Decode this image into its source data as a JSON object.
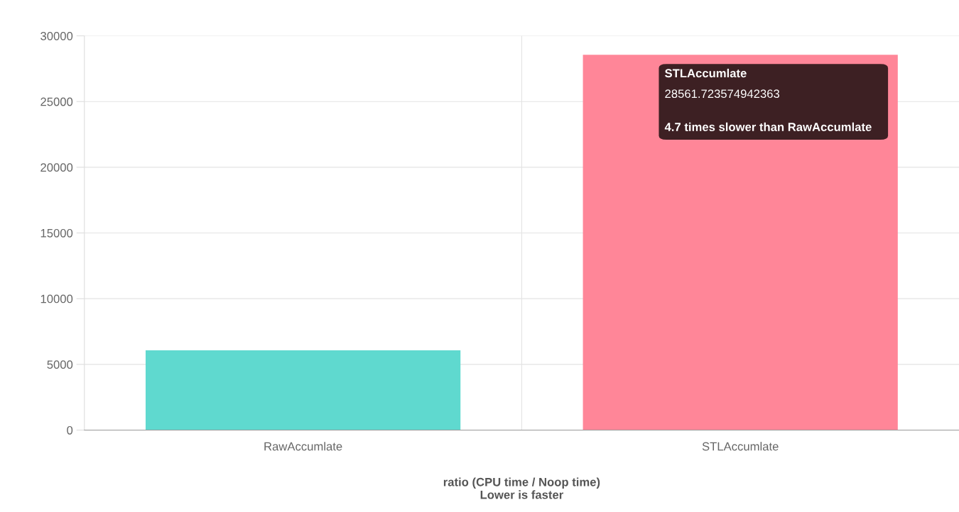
{
  "chart_data": {
    "type": "bar",
    "categories": [
      "RawAccumlate",
      "STLAccumlate"
    ],
    "values": [
      6070,
      28561.723574942363
    ],
    "colors": [
      "#5fd9cf",
      "#ff8698"
    ],
    "xlabel": "ratio (CPU time / Noop time)\nLower is faster",
    "ylim": [
      0,
      30000
    ],
    "yticks": [
      0,
      5000,
      10000,
      15000,
      20000,
      25000,
      30000
    ],
    "grid": true,
    "legend": false,
    "annotations": [
      "STLAccumlate",
      "28561.723574942363",
      "4.7 times slower than RawAccumlate"
    ]
  }
}
